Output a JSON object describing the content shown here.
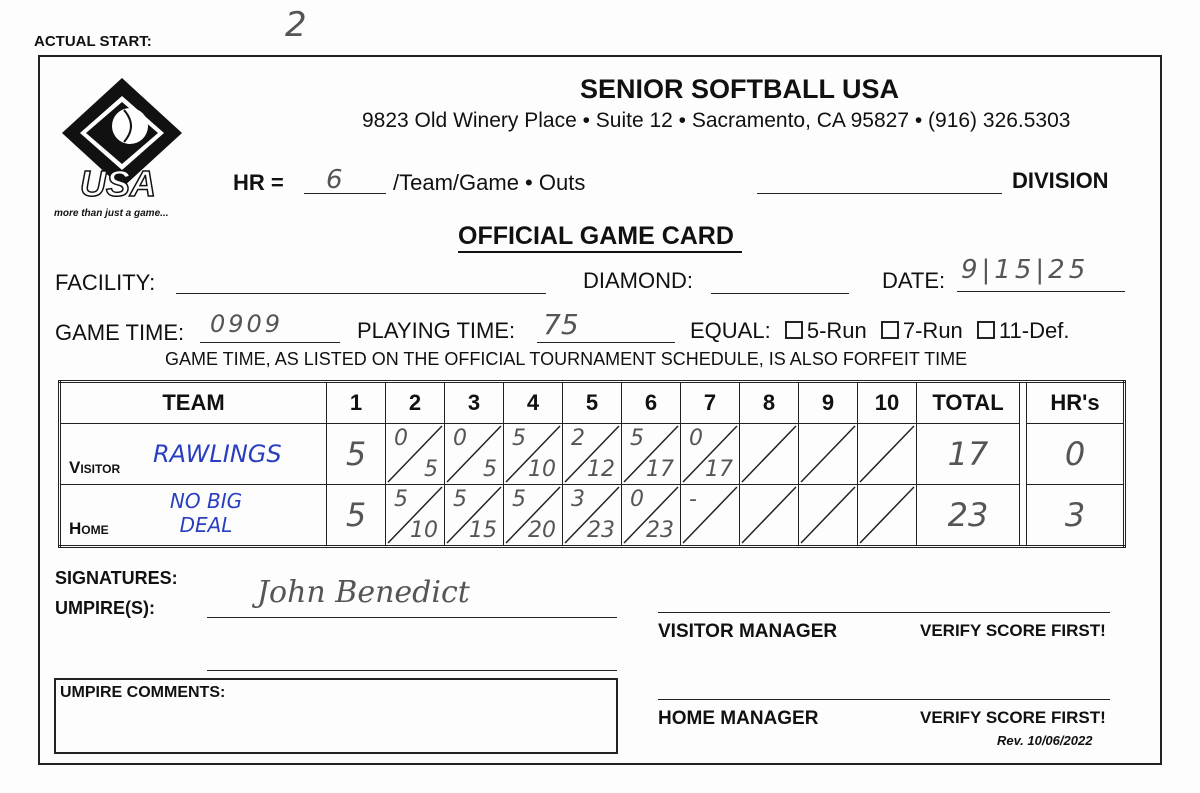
{
  "actual_start": {
    "label": "ACTUAL START:",
    "value": "2"
  },
  "logo": {
    "text_top": "SENIOR SOFTBALL",
    "text_main": "USA",
    "tagline": "more than just a game..."
  },
  "org": {
    "name": "SENIOR SOFTBALL USA",
    "address": "9823 Old Winery Place • Suite 12 • Sacramento, CA 95827 • (916) 326.5303"
  },
  "hr_rule": {
    "label": "HR =",
    "value": "6",
    "suffix": "/Team/Game • Outs"
  },
  "division": {
    "label": "DIVISION",
    "value": ""
  },
  "card_title": "OFFICIAL GAME CARD",
  "facility": {
    "label": "FACILITY:",
    "value": ""
  },
  "diamond": {
    "label": "DIAMOND:",
    "value": ""
  },
  "date": {
    "label": "DATE:",
    "value": "9|15|25"
  },
  "game_time": {
    "label": "GAME TIME:",
    "value": "0909"
  },
  "playing_time": {
    "label": "PLAYING TIME:",
    "value": "75"
  },
  "equal": {
    "label": "EQUAL:",
    "options": [
      "5-Run",
      "7-Run",
      "11-Def."
    ]
  },
  "forfeit_note": "GAME TIME, AS LISTED ON THE OFFICIAL TOURNAMENT SCHEDULE, IS ALSO FORFEIT TIME",
  "table": {
    "headers": [
      "TEAM",
      "1",
      "2",
      "3",
      "4",
      "5",
      "6",
      "7",
      "8",
      "9",
      "10",
      "TOTAL",
      "HR's"
    ],
    "visitor": {
      "label": "Visitor",
      "team": "RAWLINGS",
      "innings": [
        [
          "5",
          ""
        ],
        [
          "0",
          "5"
        ],
        [
          "0",
          "5"
        ],
        [
          "5",
          "10"
        ],
        [
          "2",
          "12"
        ],
        [
          "5",
          "17"
        ],
        [
          "0",
          "17"
        ],
        [
          "",
          ""
        ],
        [
          "",
          ""
        ],
        [
          "",
          ""
        ]
      ],
      "total": "17",
      "hrs": "0"
    },
    "home": {
      "label": "Home",
      "team": "NO BIG DEAL",
      "innings": [
        [
          "5",
          ""
        ],
        [
          "5",
          "10"
        ],
        [
          "5",
          "15"
        ],
        [
          "5",
          "20"
        ],
        [
          "3",
          "23"
        ],
        [
          "0",
          "23"
        ],
        [
          "-",
          ""
        ],
        [
          "",
          ""
        ],
        [
          "",
          ""
        ],
        [
          "",
          ""
        ]
      ],
      "total": "23",
      "hrs": "3"
    }
  },
  "signatures": {
    "label": "SIGNATURES:",
    "umpire_label": "UMPIRE(S):",
    "umpire_signature": "John Benedict"
  },
  "visitor_manager": {
    "label": "VISITOR MANAGER",
    "verify": "VERIFY SCORE FIRST!"
  },
  "home_manager": {
    "label": "HOME MANAGER",
    "verify": "VERIFY SCORE FIRST!"
  },
  "umpire_comments": {
    "label": "UMPIRE COMMENTS:",
    "value": ""
  },
  "revision": "Rev. 10/06/2022"
}
